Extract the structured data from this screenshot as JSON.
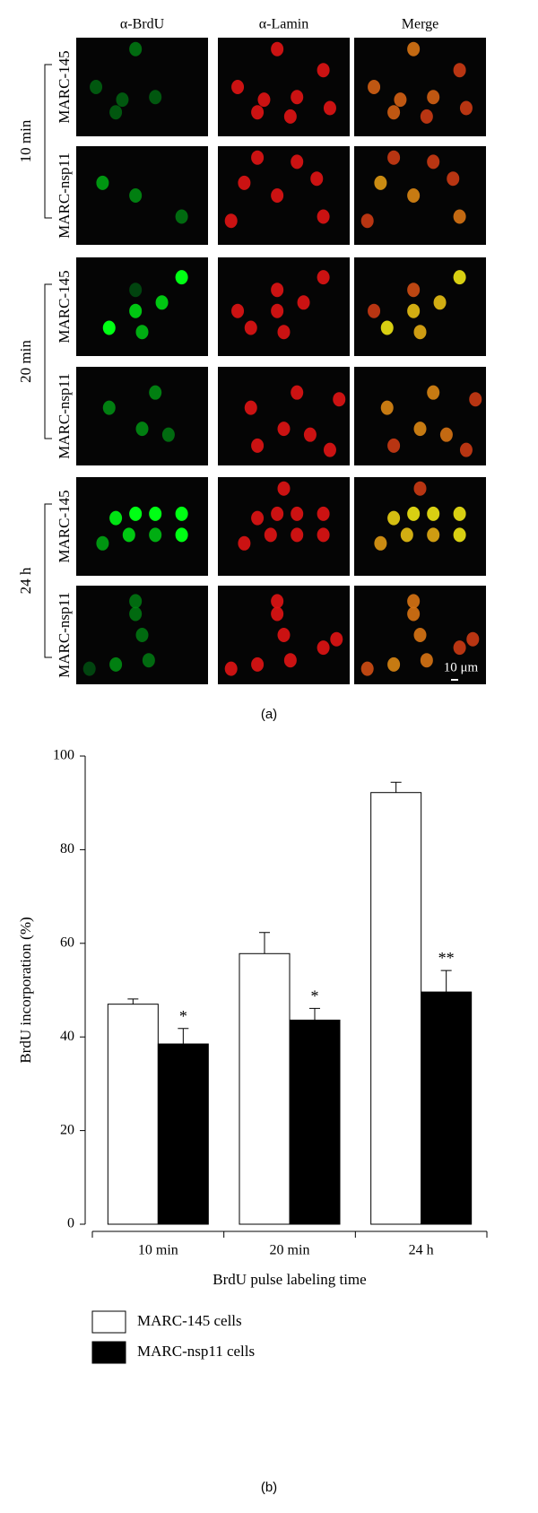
{
  "figure_a": {
    "columns": [
      "α-BrdU",
      "α-Lamin",
      "Merge"
    ],
    "times": [
      "10 min",
      "20 min",
      "24 h"
    ],
    "rows": [
      "MARC-145",
      "MARC-nsp11"
    ],
    "scale_bar": "10 μm",
    "caption": "(a)"
  },
  "chart_data": {
    "type": "bar",
    "categories": [
      "10 min",
      "20 min",
      "24 h"
    ],
    "series": [
      {
        "name": "MARC-145 cells",
        "color": "#ffffff",
        "values": [
          47,
          57.8,
          92.2
        ],
        "errors": [
          1.1,
          4.5,
          2.2
        ]
      },
      {
        "name": "MARC-nsp11 cells",
        "color": "#000000",
        "values": [
          38.5,
          43.6,
          49.6
        ],
        "errors": [
          3.3,
          2.5,
          4.6
        ],
        "value_annotations": [
          "*",
          "*",
          "**"
        ]
      }
    ],
    "ylim": [
      0,
      100
    ],
    "yticks": [
      0,
      20,
      40,
      60,
      80,
      100
    ],
    "y_label": "BrdU incorporation (%)",
    "x_label": "BrdU pulse labeling time",
    "legend": "bottom",
    "caption": "(b)"
  }
}
